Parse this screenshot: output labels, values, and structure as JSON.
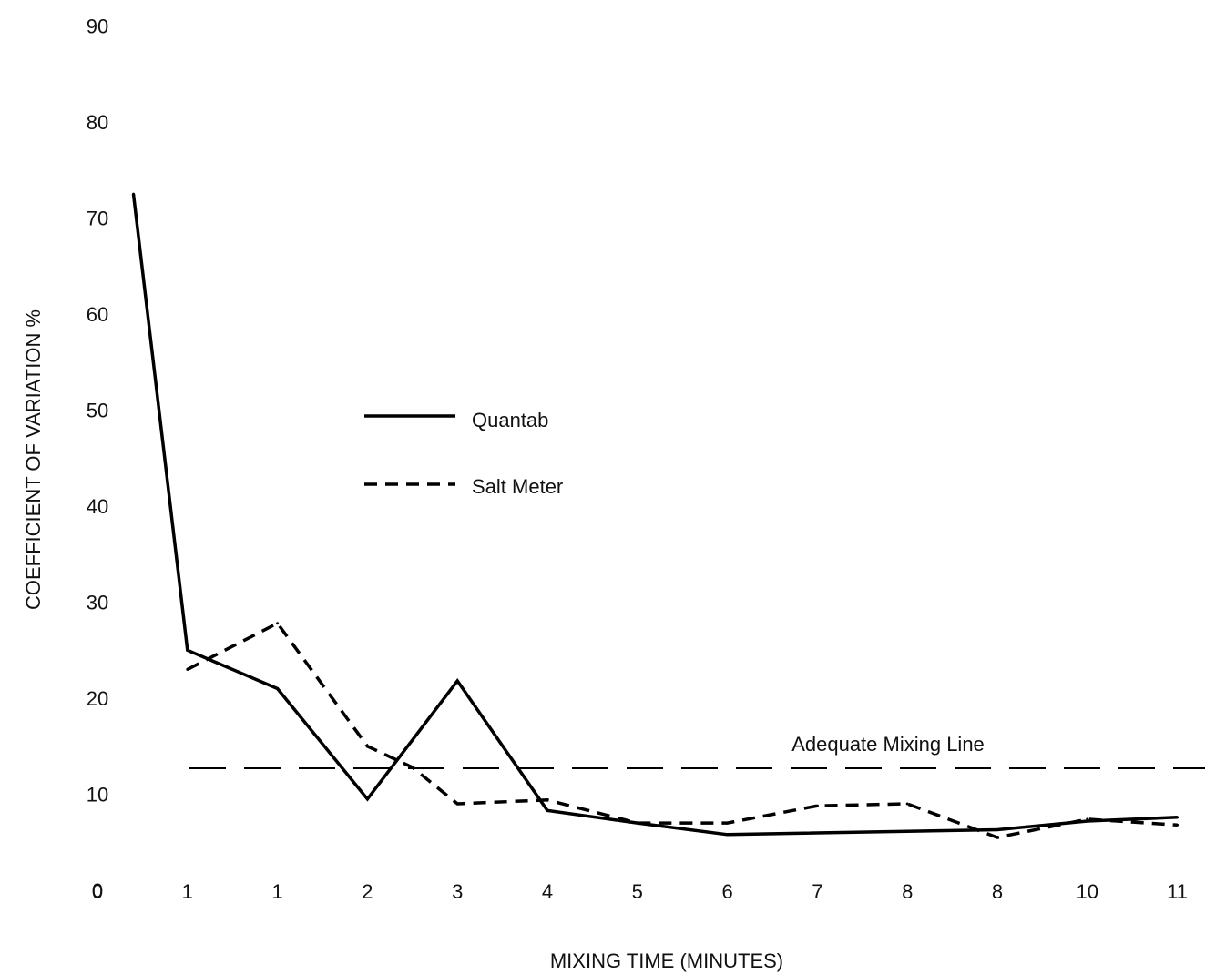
{
  "chart_data": {
    "type": "line",
    "title": "",
    "xlabel": "MIXING TIME (MINUTES)",
    "ylabel": "COEFFICIENT OF VARIATION %",
    "ylim": [
      0,
      90
    ],
    "x_tick_labels": [
      "0",
      "1",
      "1",
      "2",
      "3",
      "4",
      "5",
      "6",
      "7",
      "8",
      "8",
      "10",
      "11"
    ],
    "y_tick_labels": [
      "0",
      "10",
      "20",
      "30",
      "40",
      "50",
      "60",
      "70",
      "80",
      "90"
    ],
    "grid": false,
    "legend_position": "center-left",
    "series": [
      {
        "name": "Quantab",
        "style": "solid",
        "points": [
          {
            "x": 0.4,
            "y": 72.5
          },
          {
            "x": 1.0,
            "y": 25.0
          },
          {
            "x": 2.0,
            "y": 21.0
          },
          {
            "x": 3.0,
            "y": 9.5
          },
          {
            "x": 4.0,
            "y": 21.8
          },
          {
            "x": 5.0,
            "y": 8.3
          },
          {
            "x": 6.0,
            "y": 7.0
          },
          {
            "x": 7.0,
            "y": 5.8
          },
          {
            "x": 10.0,
            "y": 6.3
          },
          {
            "x": 11.0,
            "y": 7.2
          },
          {
            "x": 12.0,
            "y": 7.6
          }
        ]
      },
      {
        "name": "Salt Meter",
        "style": "dashed",
        "points": [
          {
            "x": 1.0,
            "y": 23.0
          },
          {
            "x": 2.0,
            "y": 27.8
          },
          {
            "x": 3.0,
            "y": 15.0
          },
          {
            "x": 3.5,
            "y": 12.8
          },
          {
            "x": 4.0,
            "y": 9.0
          },
          {
            "x": 5.0,
            "y": 9.4
          },
          {
            "x": 6.0,
            "y": 7.0
          },
          {
            "x": 7.0,
            "y": 7.0
          },
          {
            "x": 8.0,
            "y": 8.8
          },
          {
            "x": 9.0,
            "y": 9.0
          },
          {
            "x": 10.0,
            "y": 5.5
          },
          {
            "x": 11.0,
            "y": 7.4
          },
          {
            "x": 12.0,
            "y": 6.8
          }
        ]
      }
    ],
    "reference_line": {
      "y": 12.7,
      "label": "Adequate Mixing Line",
      "style": "long-dash"
    }
  }
}
